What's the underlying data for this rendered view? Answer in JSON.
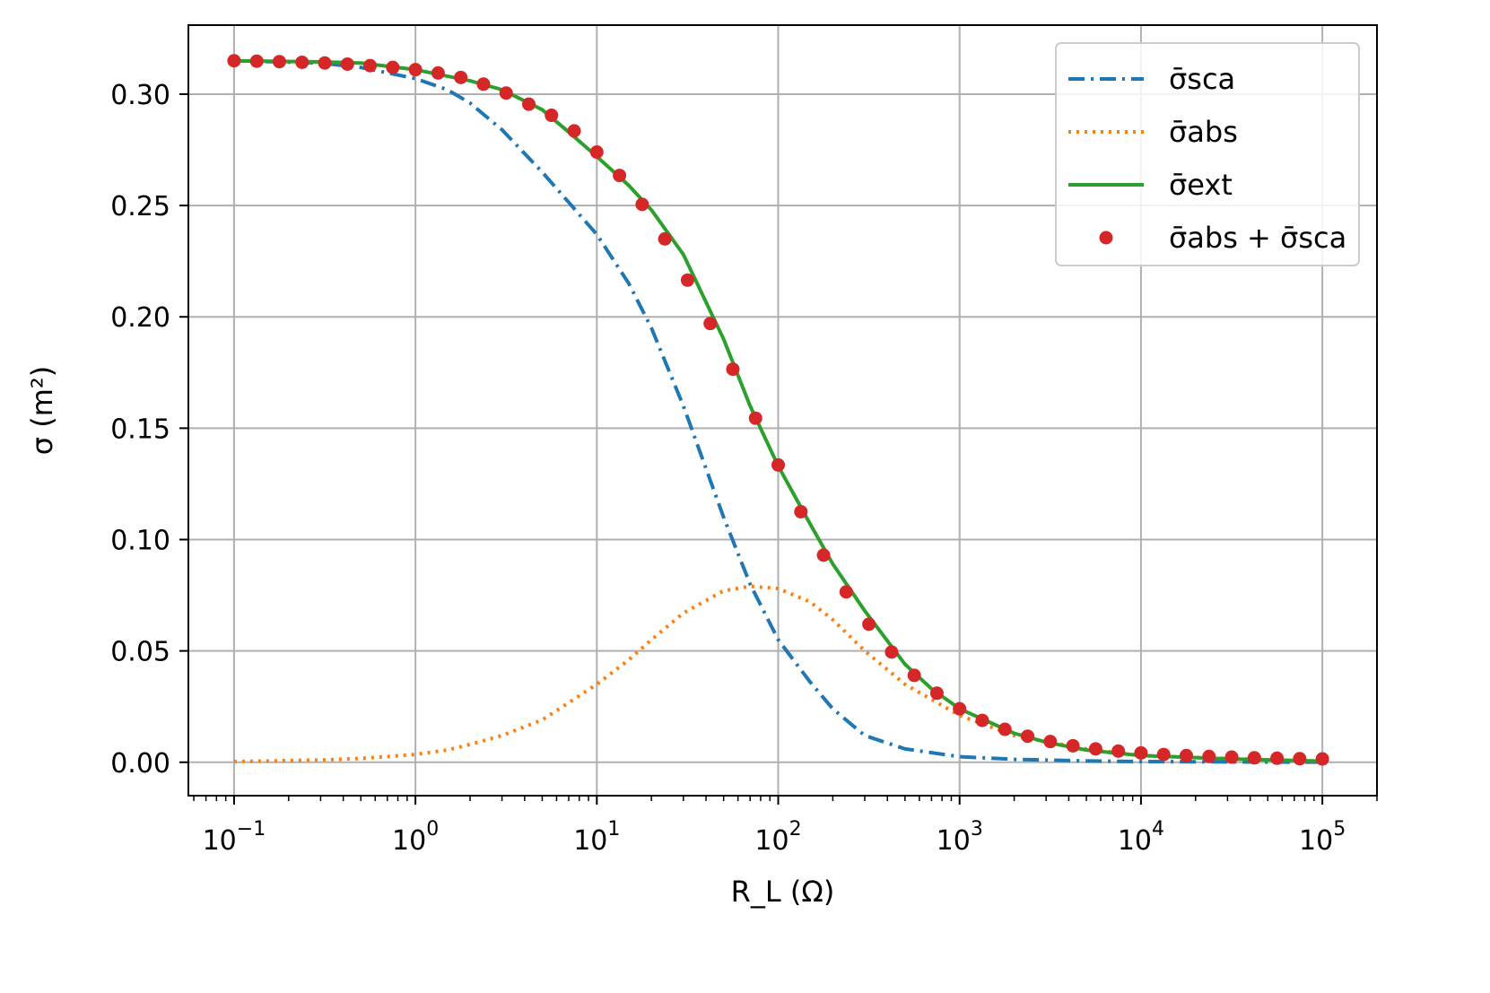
{
  "chart_data": {
    "type": "line",
    "xscale": "log",
    "xlim": [
      0.056,
      200000
    ],
    "ylim": [
      -0.015,
      0.331
    ],
    "grid": true,
    "legend_position": "top-right",
    "xlabel": "R_L (Ω)",
    "ylabel": "σ (m²)",
    "xticks": [
      {
        "value": 0.1,
        "base": "10",
        "exp": "−1"
      },
      {
        "value": 1,
        "base": "10",
        "exp": "0"
      },
      {
        "value": 10,
        "base": "10",
        "exp": "1"
      },
      {
        "value": 100,
        "base": "10",
        "exp": "2"
      },
      {
        "value": 1000,
        "base": "10",
        "exp": "3"
      },
      {
        "value": 10000,
        "base": "10",
        "exp": "4"
      },
      {
        "value": 100000,
        "base": "10",
        "exp": "5"
      }
    ],
    "yticks": [
      {
        "value": 0.0,
        "label": "0.00"
      },
      {
        "value": 0.05,
        "label": "0.05"
      },
      {
        "value": 0.1,
        "label": "0.10"
      },
      {
        "value": 0.15,
        "label": "0.15"
      },
      {
        "value": 0.2,
        "label": "0.20"
      },
      {
        "value": 0.25,
        "label": "0.25"
      },
      {
        "value": 0.3,
        "label": "0.30"
      }
    ],
    "series": [
      {
        "name": "σ̄sca",
        "color": "#1f77b4",
        "style": "dashdot",
        "x": [
          0.1,
          0.3,
          0.5,
          1,
          1.5,
          2,
          3,
          5,
          10,
          15,
          20,
          30,
          50,
          70,
          100,
          150,
          200,
          300,
          500,
          1000,
          2000,
          5000,
          10000,
          100000
        ],
        "y": [
          0.315,
          0.314,
          0.312,
          0.307,
          0.302,
          0.296,
          0.284,
          0.265,
          0.237,
          0.215,
          0.195,
          0.16,
          0.11,
          0.08,
          0.055,
          0.036,
          0.024,
          0.012,
          0.006,
          0.0025,
          0.0013,
          0.0006,
          0.0003,
          3e-05
        ]
      },
      {
        "name": "σ̄abs",
        "color": "#ff7f0e",
        "style": "dotted",
        "x": [
          0.1,
          0.3,
          0.5,
          1,
          1.5,
          2,
          3,
          5,
          10,
          15,
          20,
          30,
          50,
          70,
          100,
          150,
          200,
          300,
          500,
          1000,
          2000,
          5000,
          10000,
          100000
        ],
        "y": [
          0.0003,
          0.001,
          0.0017,
          0.0035,
          0.0055,
          0.008,
          0.012,
          0.019,
          0.035,
          0.046,
          0.055,
          0.067,
          0.077,
          0.079,
          0.078,
          0.072,
          0.064,
          0.05,
          0.035,
          0.021,
          0.012,
          0.006,
          0.003,
          0.0003
        ]
      },
      {
        "name": "σ̄ext",
        "color": "#2ca02c",
        "style": "solid",
        "x": [
          0.1,
          0.3,
          0.5,
          1,
          2,
          3,
          5,
          7,
          10,
          15,
          20,
          30,
          50,
          70,
          100,
          150,
          200,
          300,
          500,
          700,
          1000,
          2000,
          3000,
          5000,
          10000,
          30000,
          100000
        ],
        "y": [
          0.315,
          0.3145,
          0.314,
          0.311,
          0.306,
          0.302,
          0.293,
          0.283,
          0.272,
          0.259,
          0.248,
          0.228,
          0.19,
          0.16,
          0.133,
          0.107,
          0.089,
          0.068,
          0.044,
          0.033,
          0.024,
          0.013,
          0.009,
          0.0055,
          0.003,
          0.0015,
          0.0005
        ]
      },
      {
        "name": "σ̄abs + σ̄sca",
        "color": "#d62728",
        "style": "markers",
        "x": [
          0.1,
          0.1334,
          0.1778,
          0.2371,
          0.3162,
          0.4217,
          0.5623,
          0.7499,
          1,
          1.3335,
          1.7783,
          2.3714,
          3.1623,
          4.217,
          5.6234,
          7.4989,
          10,
          13.335,
          17.783,
          23.714,
          31.623,
          42.17,
          56.234,
          74.989,
          100,
          133.35,
          177.83,
          237.14,
          316.23,
          421.7,
          562.34,
          749.89,
          1000,
          1333.5,
          1778.3,
          2371.4,
          3162.3,
          4217,
          5623.4,
          7498.9,
          10000,
          13335,
          17783,
          23714,
          31623,
          42170,
          56234,
          74989,
          100000
        ],
        "y": [
          0.315,
          0.3148,
          0.3146,
          0.3143,
          0.314,
          0.3135,
          0.3128,
          0.312,
          0.311,
          0.3095,
          0.3075,
          0.3045,
          0.3005,
          0.2955,
          0.2905,
          0.2835,
          0.274,
          0.2635,
          0.2505,
          0.235,
          0.2165,
          0.197,
          0.1765,
          0.1545,
          0.1335,
          0.1125,
          0.093,
          0.0765,
          0.062,
          0.0495,
          0.039,
          0.031,
          0.024,
          0.0188,
          0.0148,
          0.0117,
          0.0093,
          0.0074,
          0.006,
          0.005,
          0.0042,
          0.0035,
          0.003,
          0.0026,
          0.0023,
          0.002,
          0.0018,
          0.0016,
          0.0015
        ]
      }
    ]
  }
}
